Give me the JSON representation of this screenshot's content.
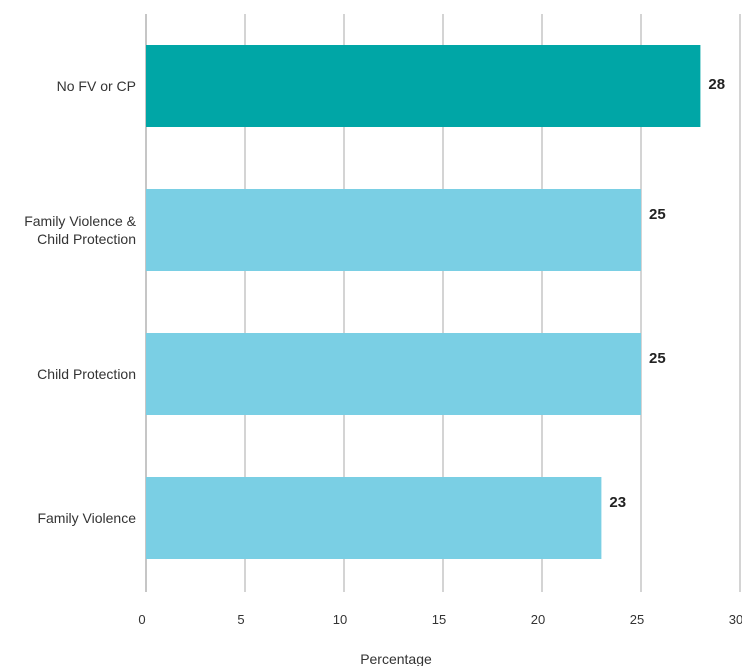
{
  "chart_data": {
    "type": "bar",
    "orientation": "horizontal",
    "xlabel": "Percentage",
    "ylabel": "",
    "xlim": [
      0,
      30
    ],
    "x_ticks": [
      0,
      5,
      10,
      15,
      20,
      25,
      30
    ],
    "x_tick_labels": [
      "0",
      "5",
      "10",
      "15",
      "20",
      "25",
      "30"
    ],
    "grid": "vertical",
    "categories": [
      {
        "label": [
          "No FV or CP"
        ],
        "value": 28,
        "value_label": "28",
        "color": "#00a6a6"
      },
      {
        "label": [
          "Family Violence &",
          "Child Protection"
        ],
        "value": 25,
        "value_label": "25",
        "color": "#7acfe4"
      },
      {
        "label": [
          "Child Protection"
        ],
        "value": 25,
        "value_label": "25",
        "color": "#7acfe4"
      },
      {
        "label": [
          "Family Violence"
        ],
        "value": 23,
        "value_label": "23",
        "color": "#7acfe4"
      }
    ]
  }
}
